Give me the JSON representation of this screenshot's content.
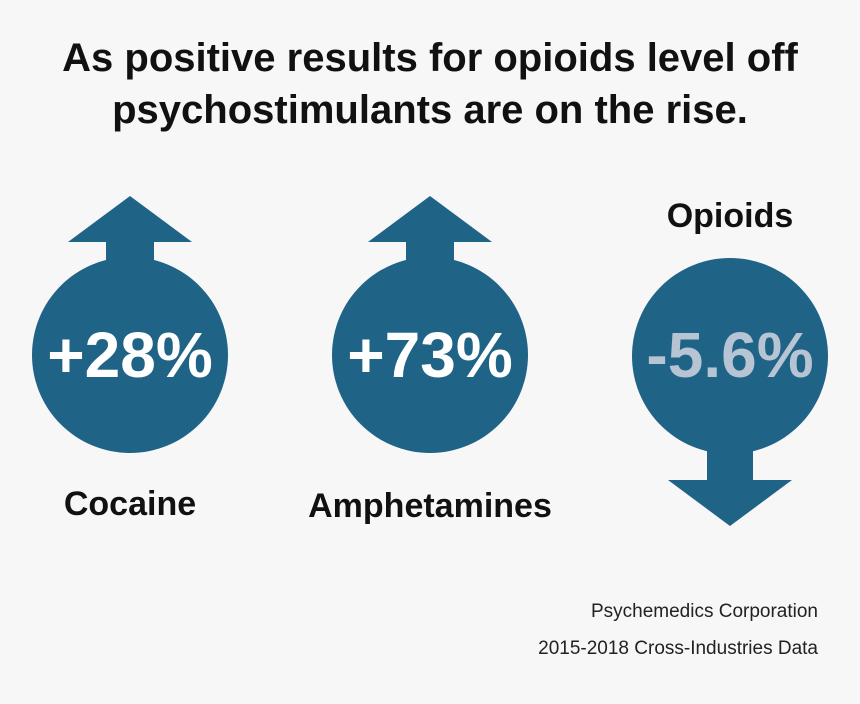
{
  "title": {
    "line1": "As positive results for opioids level off",
    "line2": "psychostimulants are on the rise."
  },
  "colors": {
    "background": "#f7f7f7",
    "circle": "#1f6387",
    "rise_text": "#ffffff",
    "fall_text": "#b7c4d3",
    "heading": "#111111"
  },
  "items": [
    {
      "label": "Cocaine",
      "value": "+28%",
      "direction": "up",
      "icon": "arrow-up-icon"
    },
    {
      "label": "Amphetamines",
      "value": "+73%",
      "direction": "up",
      "icon": "arrow-up-icon"
    },
    {
      "label": "Opioids",
      "value": "-5.6%",
      "direction": "down",
      "icon": "arrow-down-icon"
    }
  ],
  "source": {
    "line1": "Psychemedics Corporation",
    "line2": "2015-2018 Cross-Industries Data"
  }
}
